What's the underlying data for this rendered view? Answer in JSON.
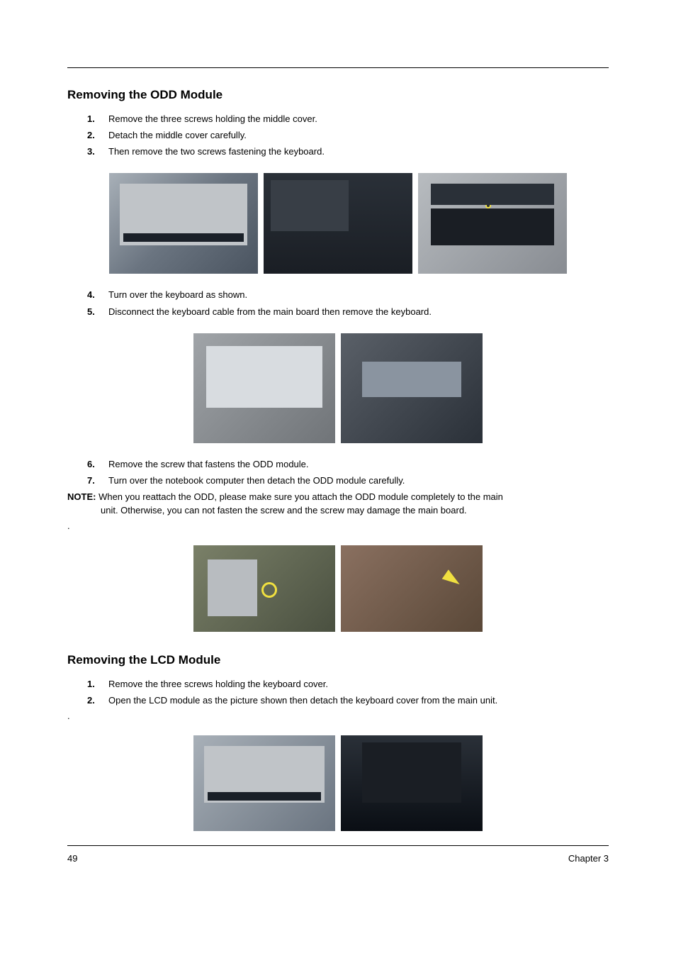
{
  "section1": {
    "heading": "Removing the ODD Module",
    "steps_a": [
      {
        "num": "1.",
        "text": "Remove the three screws holding the middle cover."
      },
      {
        "num": "2.",
        "text": "Detach the middle cover carefully."
      },
      {
        "num": "3.",
        "text": "Then remove the two screws fastening the keyboard."
      }
    ],
    "steps_b": [
      {
        "num": "4.",
        "text": "Turn over the keyboard as shown."
      },
      {
        "num": "5.",
        "text": "Disconnect the keyboard cable from the main board then remove the keyboard."
      }
    ],
    "steps_c": [
      {
        "num": "6.",
        "text": "Remove the screw that fastens the ODD module."
      },
      {
        "num": "7.",
        "text": "Turn over the notebook computer then detach the ODD module carefully."
      }
    ],
    "note_label": "NOTE: ",
    "note_line1": "When you reattach the ODD, please make sure you attach the ODD module completely to the main",
    "note_line2": "unit. Otherwise, you can not fasten the screw and the screw may damage the main board."
  },
  "section2": {
    "heading": "Removing the LCD Module",
    "steps": [
      {
        "num": "1.",
        "text": "Remove the three screws holding the keyboard cover."
      },
      {
        "num": "2.",
        "text": "Open the LCD module as the picture shown then detach the keyboard cover from the main unit."
      }
    ]
  },
  "footer": {
    "page_number": "49",
    "chapter": "Chapter 3"
  },
  "dot": "."
}
